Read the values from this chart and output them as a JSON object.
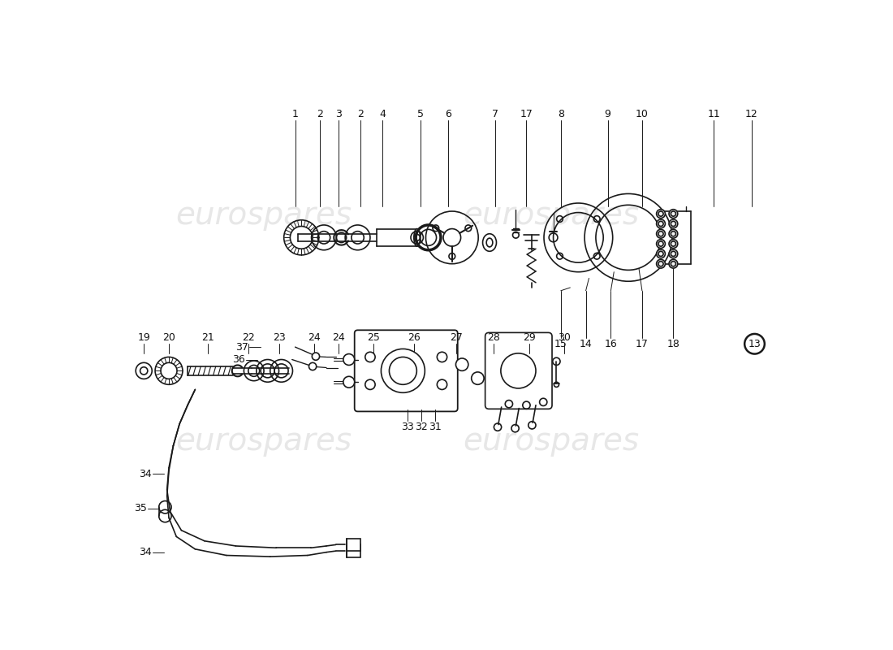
{
  "bg_color": "#ffffff",
  "watermark_text": "eurospares",
  "watermark_color": "#c0c0c0",
  "line_color": "#1a1a1a",
  "label_color": "#111111",
  "top_labels": [
    [
      "1",
      290
    ],
    [
      "2",
      330
    ],
    [
      "3",
      360
    ],
    [
      "2",
      395
    ],
    [
      "4",
      430
    ],
    [
      "5",
      490
    ],
    [
      "6",
      535
    ],
    [
      "7",
      610
    ],
    [
      "17",
      660
    ],
    [
      "8",
      715
    ],
    [
      "9",
      790
    ],
    [
      "10",
      845
    ],
    [
      "11",
      960
    ],
    [
      "12",
      1020
    ]
  ],
  "bottom_labels": [
    [
      "19",
      48
    ],
    [
      "20",
      88
    ],
    [
      "21",
      150
    ],
    [
      "22",
      215
    ],
    [
      "23",
      265
    ],
    [
      "24",
      320
    ],
    [
      "24",
      360
    ],
    [
      "25",
      415
    ],
    [
      "26",
      480
    ],
    [
      "27",
      548
    ],
    [
      "28",
      608
    ],
    [
      "29",
      665
    ],
    [
      "30",
      720
    ]
  ],
  "lower_labels": [
    [
      "37",
      220
    ],
    [
      "36",
      218
    ],
    [
      "34",
      70
    ],
    [
      "35",
      62
    ],
    [
      "34",
      62
    ]
  ],
  "right_lower_labels": [
    [
      "33",
      470
    ],
    [
      "32",
      492
    ],
    [
      "31",
      514
    ]
  ],
  "right_distr_labels": [
    [
      "15",
      715
    ],
    [
      "14",
      755
    ],
    [
      "16",
      795
    ],
    [
      "17",
      845
    ],
    [
      "18",
      895
    ]
  ]
}
